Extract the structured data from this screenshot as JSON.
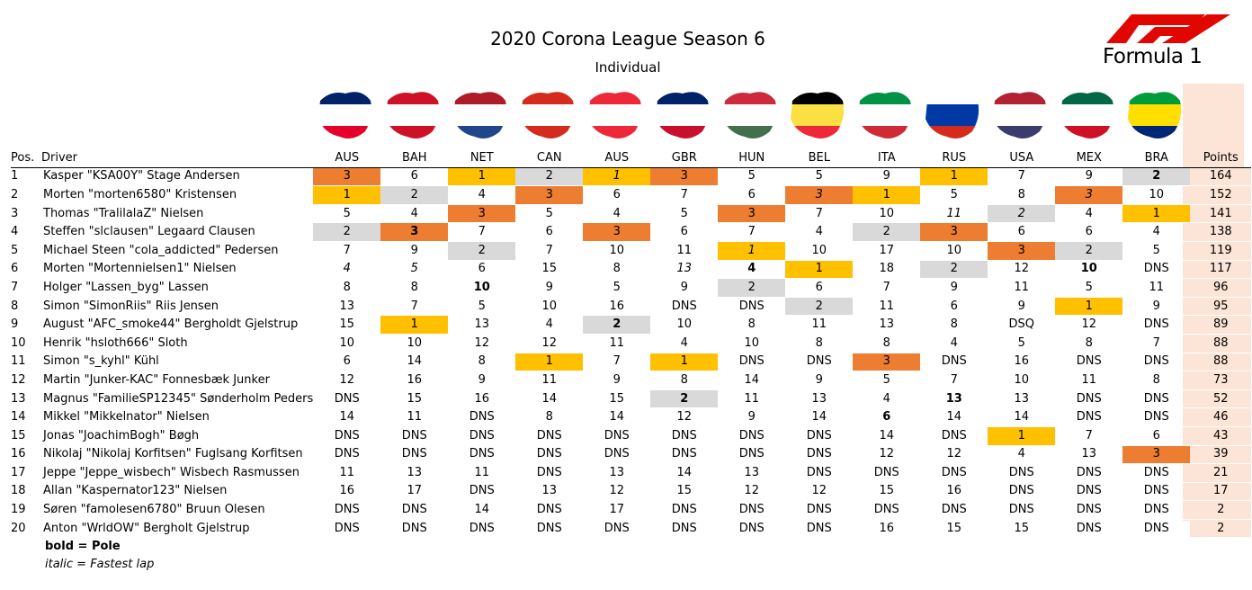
{
  "title": "2020 Corona League Season 6",
  "subtitle": "Individual",
  "logo_text": "FORMULA 1",
  "colors": {
    "win": "#ffc000",
    "second": "#d9d9d9",
    "third": "#ed7d31",
    "points": "#fce4d6",
    "f1_red": "#e10600"
  },
  "flags": [
    "australia-flag-icon",
    "bahrain-flag-icon",
    "netherlands-flag-icon",
    "canada-flag-icon",
    "austria-flag-icon",
    "great-britain-flag-icon",
    "hungary-flag-icon",
    "belgium-flag-icon",
    "italy-flag-icon",
    "russia-flag-icon",
    "usa-flag-icon",
    "mexico-flag-icon",
    "brazil-flag-icon"
  ],
  "headers": {
    "pos": "Pos.",
    "driver": "Driver",
    "points": "Points"
  },
  "races": [
    "AUS",
    "BAH",
    "NET",
    "CAN",
    "AUS",
    "GBR",
    "HUN",
    "BEL",
    "ITA",
    "RUS",
    "USA",
    "MEX",
    "BRA"
  ],
  "rows": [
    {
      "pos": "1",
      "driver": "Kasper \"KSA00Y\" Stage Andersen",
      "points": "164",
      "results": [
        {
          "v": "3",
          "hl": "third"
        },
        {
          "v": "6"
        },
        {
          "v": "1",
          "hl": "win"
        },
        {
          "v": "2",
          "hl": "second"
        },
        {
          "v": "1",
          "hl": "win",
          "i": true
        },
        {
          "v": "3",
          "hl": "third"
        },
        {
          "v": "5"
        },
        {
          "v": "5"
        },
        {
          "v": "9"
        },
        {
          "v": "1",
          "hl": "win"
        },
        {
          "v": "7"
        },
        {
          "v": "9"
        },
        {
          "v": "2",
          "hl": "second",
          "b": true
        }
      ]
    },
    {
      "pos": "2",
      "driver": "Morten \"morten6580\" Kristensen",
      "points": "152",
      "results": [
        {
          "v": "1",
          "hl": "win"
        },
        {
          "v": "2",
          "hl": "second"
        },
        {
          "v": "4"
        },
        {
          "v": "3",
          "hl": "third"
        },
        {
          "v": "6"
        },
        {
          "v": "7"
        },
        {
          "v": "6"
        },
        {
          "v": "3",
          "hl": "third",
          "i": true
        },
        {
          "v": "1",
          "hl": "win"
        },
        {
          "v": "5"
        },
        {
          "v": "8"
        },
        {
          "v": "3",
          "hl": "third",
          "i": true
        },
        {
          "v": "10"
        }
      ]
    },
    {
      "pos": "3",
      "driver": "Thomas \"TralilalaZ\" Nielsen",
      "points": "141",
      "results": [
        {
          "v": "5"
        },
        {
          "v": "4"
        },
        {
          "v": "3",
          "hl": "third"
        },
        {
          "v": "5"
        },
        {
          "v": "4"
        },
        {
          "v": "5"
        },
        {
          "v": "3",
          "hl": "third"
        },
        {
          "v": "7"
        },
        {
          "v": "10"
        },
        {
          "v": "11",
          "i": true
        },
        {
          "v": "2",
          "hl": "second",
          "i": true
        },
        {
          "v": "4"
        },
        {
          "v": "1",
          "hl": "win"
        }
      ]
    },
    {
      "pos": "4",
      "driver": "Steffen \"slclausen\" Legaard Clausen",
      "points": "138",
      "results": [
        {
          "v": "2",
          "hl": "second"
        },
        {
          "v": "3",
          "hl": "third",
          "b": true
        },
        {
          "v": "7"
        },
        {
          "v": "6"
        },
        {
          "v": "3",
          "hl": "third"
        },
        {
          "v": "6"
        },
        {
          "v": "7"
        },
        {
          "v": "4"
        },
        {
          "v": "2",
          "hl": "second"
        },
        {
          "v": "3",
          "hl": "third"
        },
        {
          "v": "6"
        },
        {
          "v": "6"
        },
        {
          "v": "4"
        }
      ]
    },
    {
      "pos": "5",
      "driver": "Michael Steen \"cola_addicted\" Pedersen",
      "points": "119",
      "results": [
        {
          "v": "7"
        },
        {
          "v": "9"
        },
        {
          "v": "2",
          "hl": "second"
        },
        {
          "v": "7"
        },
        {
          "v": "10"
        },
        {
          "v": "11"
        },
        {
          "v": "1",
          "hl": "win",
          "i": true
        },
        {
          "v": "10"
        },
        {
          "v": "17"
        },
        {
          "v": "10"
        },
        {
          "v": "3",
          "hl": "third"
        },
        {
          "v": "2",
          "hl": "second"
        },
        {
          "v": "5"
        }
      ]
    },
    {
      "pos": "6",
      "driver": "Morten \"Mortennielsen1\" Nielsen",
      "points": "117",
      "results": [
        {
          "v": "4",
          "i": true
        },
        {
          "v": "5",
          "i": true
        },
        {
          "v": "6"
        },
        {
          "v": "15"
        },
        {
          "v": "8"
        },
        {
          "v": "13",
          "i": true
        },
        {
          "v": "4",
          "b": true
        },
        {
          "v": "1",
          "hl": "win"
        },
        {
          "v": "18"
        },
        {
          "v": "2",
          "hl": "second"
        },
        {
          "v": "12"
        },
        {
          "v": "10",
          "b": true
        },
        {
          "v": "DNS"
        }
      ]
    },
    {
      "pos": "7",
      "driver": "Holger \"Lassen_byg\" Lassen",
      "points": "96",
      "results": [
        {
          "v": "8"
        },
        {
          "v": "8"
        },
        {
          "v": "10",
          "b": true
        },
        {
          "v": "9"
        },
        {
          "v": "5"
        },
        {
          "v": "9"
        },
        {
          "v": "2",
          "hl": "second"
        },
        {
          "v": "6"
        },
        {
          "v": "7"
        },
        {
          "v": "9"
        },
        {
          "v": "11"
        },
        {
          "v": "5"
        },
        {
          "v": "11"
        }
      ]
    },
    {
      "pos": "8",
      "driver": "Simon \"SimonRiis\" Riis Jensen",
      "points": "95",
      "results": [
        {
          "v": "13"
        },
        {
          "v": "7"
        },
        {
          "v": "5"
        },
        {
          "v": "10"
        },
        {
          "v": "16"
        },
        {
          "v": "DNS"
        },
        {
          "v": "DNS"
        },
        {
          "v": "2",
          "hl": "second"
        },
        {
          "v": "11"
        },
        {
          "v": "6"
        },
        {
          "v": "9"
        },
        {
          "v": "1",
          "hl": "win"
        },
        {
          "v": "9"
        }
      ]
    },
    {
      "pos": "9",
      "driver": "August \"AFC_smoke44\" Bergholdt Gjelstrup",
      "points": "89",
      "results": [
        {
          "v": "15"
        },
        {
          "v": "1",
          "hl": "win"
        },
        {
          "v": "13"
        },
        {
          "v": "4"
        },
        {
          "v": "2",
          "hl": "second",
          "b": true
        },
        {
          "v": "10"
        },
        {
          "v": "8"
        },
        {
          "v": "11"
        },
        {
          "v": "13"
        },
        {
          "v": "8"
        },
        {
          "v": "DSQ"
        },
        {
          "v": "12"
        },
        {
          "v": "DNS"
        }
      ]
    },
    {
      "pos": "10",
      "driver": "Henrik \"hsloth666\" Sloth",
      "points": "88",
      "results": [
        {
          "v": "10"
        },
        {
          "v": "10"
        },
        {
          "v": "12"
        },
        {
          "v": "12"
        },
        {
          "v": "11"
        },
        {
          "v": "4"
        },
        {
          "v": "10"
        },
        {
          "v": "8"
        },
        {
          "v": "8"
        },
        {
          "v": "4"
        },
        {
          "v": "5"
        },
        {
          "v": "8"
        },
        {
          "v": "7"
        }
      ]
    },
    {
      "pos": "11",
      "driver": "Simon \"s_kyhl\" Kühl",
      "points": "88",
      "results": [
        {
          "v": "6"
        },
        {
          "v": "14"
        },
        {
          "v": "8"
        },
        {
          "v": "1",
          "hl": "win"
        },
        {
          "v": "7"
        },
        {
          "v": "1",
          "hl": "win"
        },
        {
          "v": "DNS"
        },
        {
          "v": "DNS"
        },
        {
          "v": "3",
          "hl": "third"
        },
        {
          "v": "DNS"
        },
        {
          "v": "16"
        },
        {
          "v": "DNS"
        },
        {
          "v": "DNS"
        }
      ]
    },
    {
      "pos": "12",
      "driver": "Martin \"Junker-KAC\" Fonnesbæk Junker",
      "points": "73",
      "results": [
        {
          "v": "12"
        },
        {
          "v": "16"
        },
        {
          "v": "9"
        },
        {
          "v": "11"
        },
        {
          "v": "9"
        },
        {
          "v": "8"
        },
        {
          "v": "14"
        },
        {
          "v": "9"
        },
        {
          "v": "5"
        },
        {
          "v": "7"
        },
        {
          "v": "10"
        },
        {
          "v": "11"
        },
        {
          "v": "8"
        }
      ]
    },
    {
      "pos": "13",
      "driver": "Magnus \"FamilieSP12345\" Sønderholm Peders",
      "points": "52",
      "results": [
        {
          "v": "DNS"
        },
        {
          "v": "15"
        },
        {
          "v": "16"
        },
        {
          "v": "14"
        },
        {
          "v": "15"
        },
        {
          "v": "2",
          "hl": "second",
          "b": true
        },
        {
          "v": "11"
        },
        {
          "v": "13"
        },
        {
          "v": "4"
        },
        {
          "v": "13",
          "b": true
        },
        {
          "v": "13"
        },
        {
          "v": "DNS"
        },
        {
          "v": "DNS"
        }
      ]
    },
    {
      "pos": "14",
      "driver": "Mikkel \"Mikkelnator\" Nielsen",
      "points": "46",
      "results": [
        {
          "v": "14"
        },
        {
          "v": "11"
        },
        {
          "v": "DNS"
        },
        {
          "v": "8"
        },
        {
          "v": "14"
        },
        {
          "v": "12"
        },
        {
          "v": "9"
        },
        {
          "v": "14"
        },
        {
          "v": "6",
          "b": true
        },
        {
          "v": "14"
        },
        {
          "v": "14"
        },
        {
          "v": "DNS"
        },
        {
          "v": "DNS"
        }
      ]
    },
    {
      "pos": "15",
      "driver": "Jonas \"JoachimBogh\" Bøgh",
      "points": "43",
      "results": [
        {
          "v": "DNS"
        },
        {
          "v": "DNS"
        },
        {
          "v": "DNS"
        },
        {
          "v": "DNS"
        },
        {
          "v": "DNS"
        },
        {
          "v": "DNS"
        },
        {
          "v": "DNS"
        },
        {
          "v": "DNS"
        },
        {
          "v": "14"
        },
        {
          "v": "DNS"
        },
        {
          "v": "1",
          "hl": "win"
        },
        {
          "v": "7"
        },
        {
          "v": "6"
        }
      ]
    },
    {
      "pos": "16",
      "driver": "Nikolaj \"Nikolaj Korfitsen\" Fuglsang Korfitsen",
      "points": "39",
      "results": [
        {
          "v": "DNS"
        },
        {
          "v": "DNS"
        },
        {
          "v": "DNS"
        },
        {
          "v": "DNS"
        },
        {
          "v": "DNS"
        },
        {
          "v": "DNS"
        },
        {
          "v": "DNS"
        },
        {
          "v": "DNS"
        },
        {
          "v": "12"
        },
        {
          "v": "12"
        },
        {
          "v": "4"
        },
        {
          "v": "13"
        },
        {
          "v": "3",
          "hl": "third"
        }
      ]
    },
    {
      "pos": "17",
      "driver": "Jeppe \"Jeppe_wisbech\" Wisbech Rasmussen",
      "points": "21",
      "results": [
        {
          "v": "11"
        },
        {
          "v": "13"
        },
        {
          "v": "11"
        },
        {
          "v": "DNS"
        },
        {
          "v": "13"
        },
        {
          "v": "14"
        },
        {
          "v": "13"
        },
        {
          "v": "DNS"
        },
        {
          "v": "DNS"
        },
        {
          "v": "DNS"
        },
        {
          "v": "DNS"
        },
        {
          "v": "DNS"
        },
        {
          "v": "DNS"
        }
      ]
    },
    {
      "pos": "18",
      "driver": "Allan \"Kaspernator123\" Nielsen",
      "points": "17",
      "results": [
        {
          "v": "16"
        },
        {
          "v": "17"
        },
        {
          "v": "DNS"
        },
        {
          "v": "13"
        },
        {
          "v": "12"
        },
        {
          "v": "15"
        },
        {
          "v": "12"
        },
        {
          "v": "12"
        },
        {
          "v": "15"
        },
        {
          "v": "16"
        },
        {
          "v": "DNS"
        },
        {
          "v": "DNS"
        },
        {
          "v": "DNS"
        }
      ]
    },
    {
      "pos": "19",
      "driver": "Søren \"famolesen6780\" Bruun Olesen",
      "points": "2",
      "results": [
        {
          "v": "DNS"
        },
        {
          "v": "DNS"
        },
        {
          "v": "14"
        },
        {
          "v": "DNS"
        },
        {
          "v": "17"
        },
        {
          "v": "DNS"
        },
        {
          "v": "DNS"
        },
        {
          "v": "DNS"
        },
        {
          "v": "DNS"
        },
        {
          "v": "DNS"
        },
        {
          "v": "DNS"
        },
        {
          "v": "DNS"
        },
        {
          "v": "DNS"
        }
      ]
    },
    {
      "pos": "20",
      "driver": "Anton \"WrldOW\" Bergholt Gjelstrup",
      "points": "2",
      "results": [
        {
          "v": "DNS"
        },
        {
          "v": "DNS"
        },
        {
          "v": "DNS"
        },
        {
          "v": "DNS"
        },
        {
          "v": "DNS"
        },
        {
          "v": "DNS"
        },
        {
          "v": "DNS"
        },
        {
          "v": "DNS"
        },
        {
          "v": "16"
        },
        {
          "v": "15"
        },
        {
          "v": "15"
        },
        {
          "v": "DNS"
        },
        {
          "v": "DNS"
        }
      ]
    }
  ],
  "legend": {
    "pole": "bold = Pole",
    "fastest_lap": "italic = Fastest lap"
  }
}
